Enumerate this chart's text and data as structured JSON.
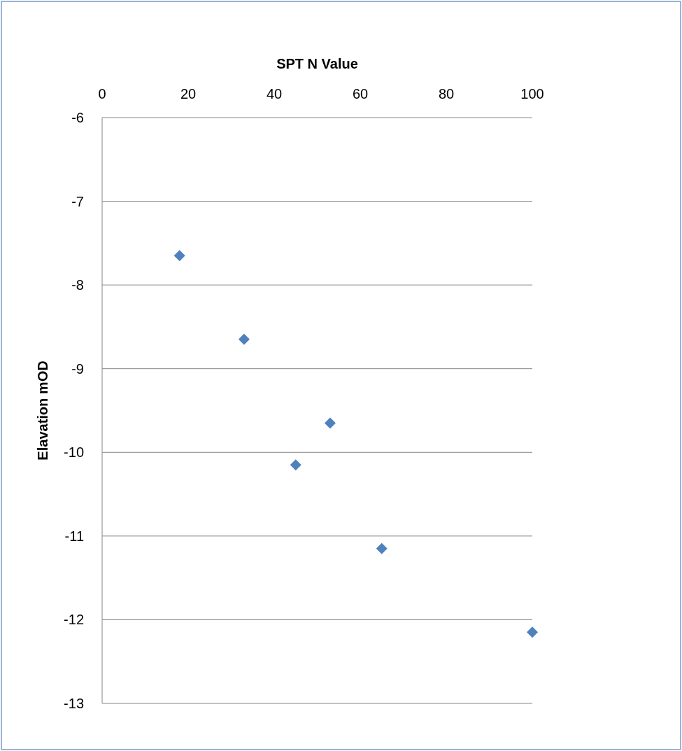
{
  "chart_data": {
    "type": "scatter",
    "xlabel": "SPT N Value",
    "ylabel": "Elavation mOD",
    "x": [
      18,
      33,
      45,
      53,
      65,
      100
    ],
    "series": [
      {
        "color": "#4f81bd",
        "values": [
          -7.65,
          -8.65,
          -10.15,
          -9.65,
          -11.15,
          -12.15
        ]
      }
    ],
    "xlim": [
      0,
      100
    ],
    "xticks": [
      0,
      20,
      40,
      60,
      80,
      100
    ],
    "ylim": [
      -13,
      -6
    ],
    "yticks": [
      -6,
      -7,
      -8,
      -9,
      -10,
      -11,
      -12,
      -13
    ],
    "grid": "y",
    "marker": "diamond"
  }
}
